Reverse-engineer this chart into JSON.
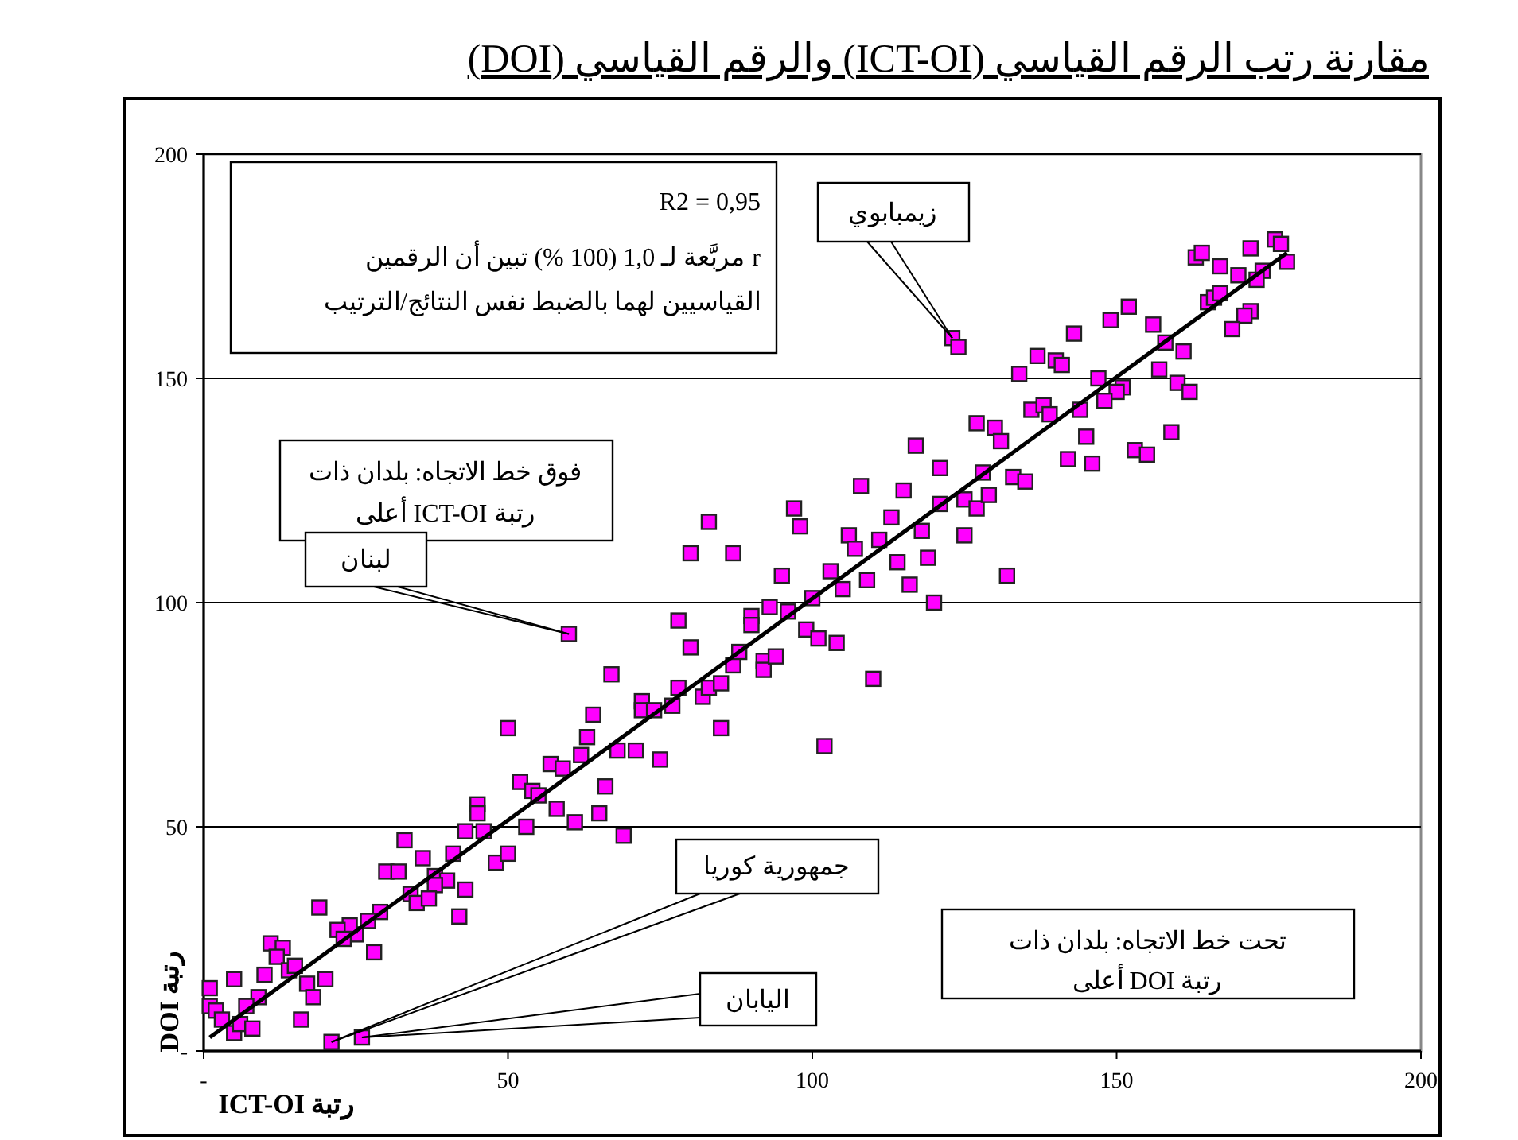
{
  "chart_data": {
    "type": "scatter",
    "title": "مقارنة رتب الرقم القياسي (ICT-OI) والرقم القياسي (DOI)",
    "xlabel": "رتبة ICT-OI",
    "ylabel": "رتبة DOI",
    "xlim": [
      0,
      200
    ],
    "ylim": [
      0,
      200
    ],
    "xticks": [
      {
        "value": 0,
        "label": "-"
      },
      50,
      100,
      150,
      200
    ],
    "yticks": [
      {
        "value": 0,
        "label": "-"
      },
      50,
      100,
      150,
      200
    ],
    "grid": "y",
    "marker": "square",
    "series": [
      {
        "color": "#ff00ff",
        "x": [
          60,
          50,
          64,
          63,
          62,
          57,
          59,
          52,
          54,
          55,
          58,
          61,
          65,
          53,
          45,
          45,
          43,
          46,
          41,
          33,
          30,
          32,
          36,
          38,
          40,
          38,
          34,
          35,
          37,
          43,
          48,
          50,
          42,
          29,
          27,
          25,
          24,
          22,
          23,
          28,
          19,
          11,
          13,
          12,
          14,
          15,
          10,
          5,
          9,
          7,
          1,
          1,
          2,
          3,
          5,
          6,
          8,
          17,
          18,
          20,
          16,
          21,
          26,
          78,
          80,
          67,
          72,
          72,
          74,
          77,
          78,
          82,
          83,
          85,
          87,
          88,
          92,
          92,
          94,
          90,
          90,
          93,
          96,
          99,
          101,
          104,
          110,
          102,
          85,
          68,
          71,
          75,
          66,
          69,
          120,
          123,
          124,
          127,
          130,
          131,
          117,
          121,
          108,
          115,
          83,
          97,
          98,
          80,
          87,
          106,
          107,
          111,
          113,
          118,
          121,
          125,
          127,
          129,
          128,
          125,
          119,
          114,
          116,
          103,
          109,
          105,
          95,
          100,
          132,
          176,
          177,
          178,
          172,
          163,
          164,
          167,
          170,
          174,
          173,
          165,
          166,
          167,
          172,
          171,
          169,
          152,
          149,
          143,
          156,
          158,
          161,
          157,
          160,
          162,
          159,
          137,
          140,
          141,
          134,
          147,
          151,
          150,
          148,
          136,
          138,
          139,
          144,
          145,
          142,
          146,
          153,
          155,
          133,
          135
        ],
        "values": [
          93,
          72,
          75,
          70,
          66,
          64,
          63,
          60,
          58,
          57,
          54,
          51,
          53,
          50,
          55,
          53,
          49,
          49,
          44,
          47,
          40,
          40,
          43,
          39,
          38,
          37,
          35,
          33,
          34,
          36,
          42,
          44,
          30,
          31,
          29,
          26,
          28,
          27,
          25,
          22,
          32,
          24,
          23,
          21,
          18,
          19,
          17,
          16,
          12,
          10,
          14,
          10,
          9,
          7,
          4,
          6,
          5,
          15,
          12,
          16,
          7,
          2,
          3,
          96,
          90,
          84,
          78,
          76,
          76,
          77,
          81,
          79,
          81,
          82,
          86,
          89,
          87,
          85,
          88,
          97,
          95,
          99,
          98,
          94,
          92,
          91,
          83,
          68,
          72,
          67,
          67,
          65,
          59,
          48,
          100,
          159,
          157,
          140,
          139,
          136,
          135,
          130,
          126,
          125,
          118,
          121,
          117,
          111,
          111,
          115,
          112,
          114,
          119,
          116,
          122,
          123,
          121,
          124,
          129,
          115,
          110,
          109,
          104,
          107,
          105,
          103,
          106,
          101,
          106,
          181,
          180,
          176,
          179,
          177,
          178,
          175,
          173,
          174,
          172,
          167,
          168,
          169,
          165,
          164,
          161,
          166,
          163,
          160,
          162,
          158,
          156,
          152,
          149,
          147,
          138,
          155,
          154,
          153,
          151,
          150,
          148,
          147,
          145,
          143,
          144,
          142,
          143,
          137,
          132,
          131,
          134,
          133,
          128,
          127
        ]
      },
      {
        "type": "line",
        "marker": "none",
        "color": "#000000",
        "x": [
          1,
          178
        ],
        "values": [
          3,
          178
        ]
      }
    ],
    "annotations": [
      "R2 = 0,95\nr مربَّعة لـ 1,0 (100 %) تبين أن الرقمين\nالقياسيين لهما بالضبط نفس النتائج/الترتيب",
      "فوق خط الاتجاه: بلدان ذات\nرتبة ICT-OI أعلى",
      "تحت خط الاتجاه: بلدان ذات\nرتبة DOI أعلى",
      {
        "text": "زيمبابوي",
        "x": 123,
        "y": 159
      },
      {
        "text": "لبنان",
        "x": 60,
        "y": 93
      },
      {
        "text": "جمهورية كوريا",
        "x": 21,
        "y": 2
      },
      {
        "text": "اليابان",
        "x": 26,
        "y": 3
      }
    ]
  }
}
